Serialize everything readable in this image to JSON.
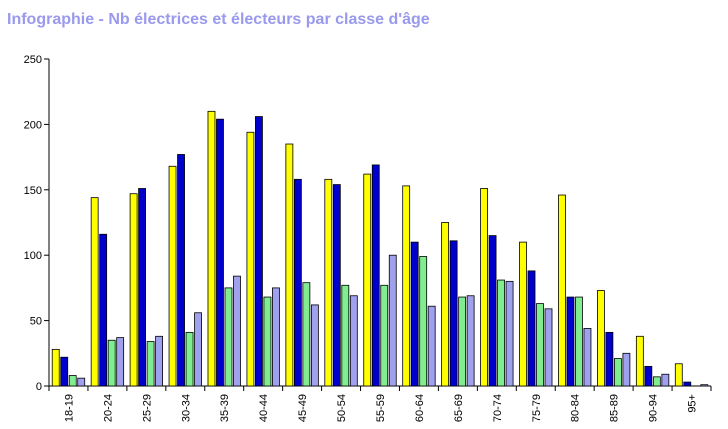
{
  "chart_data": {
    "type": "bar",
    "title": "Infographie - Nb électrices et électeurs par classe d'âge",
    "xlabel": "",
    "ylabel": "",
    "ylim": [
      0,
      250
    ],
    "yticks": [
      0,
      50,
      100,
      150,
      200,
      250
    ],
    "grid": false,
    "legend": "none",
    "categories": [
      "18-19",
      "20-24",
      "25-29",
      "30-34",
      "35-39",
      "40-44",
      "45-49",
      "50-54",
      "55-59",
      "60-64",
      "65-69",
      "70-74",
      "75-79",
      "80-84",
      "85-89",
      "90-94",
      "95+"
    ],
    "series": [
      {
        "color": "#ffff00",
        "values": [
          28,
          144,
          147,
          168,
          210,
          194,
          185,
          158,
          162,
          153,
          125,
          151,
          110,
          146,
          73,
          38,
          17
        ]
      },
      {
        "color": "#0000cc",
        "values": [
          22,
          116,
          151,
          177,
          204,
          206,
          158,
          154,
          169,
          110,
          111,
          115,
          88,
          68,
          41,
          15,
          3
        ]
      },
      {
        "color": "#80ee90",
        "values": [
          8,
          35,
          34,
          41,
          75,
          68,
          79,
          77,
          77,
          99,
          68,
          81,
          63,
          68,
          21,
          7,
          0
        ]
      },
      {
        "color": "#9fa0ee",
        "values": [
          6,
          37,
          38,
          56,
          84,
          75,
          62,
          69,
          100,
          61,
          69,
          80,
          59,
          44,
          25,
          9,
          1
        ]
      }
    ]
  }
}
